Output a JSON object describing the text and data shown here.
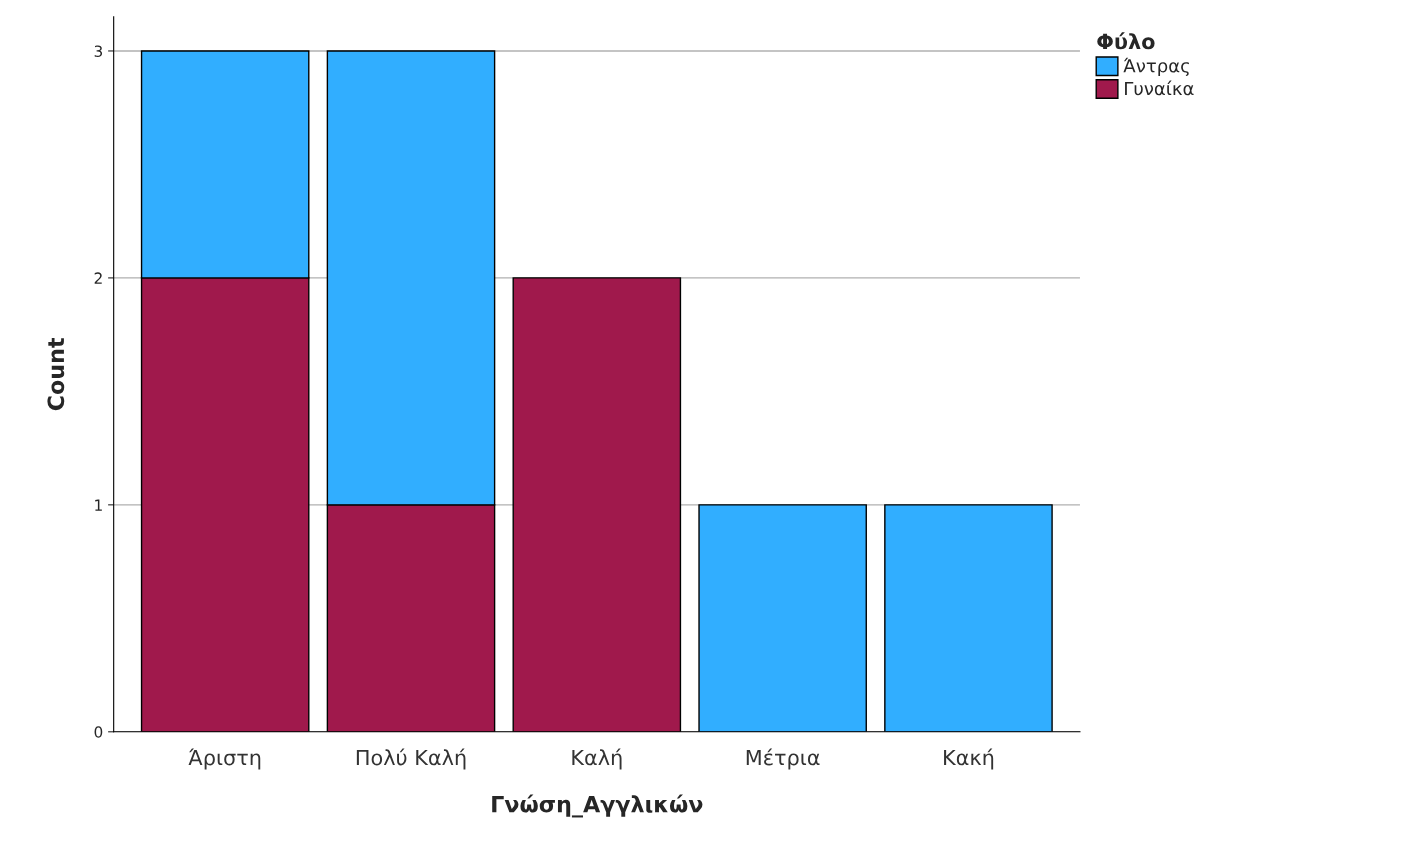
{
  "chart_data": {
    "type": "bar",
    "stacked": true,
    "xlabel": "Γνώση_Αγγλικών",
    "ylabel": "Count",
    "legend_title": "Φύλο",
    "categories": [
      "Άριστη",
      "Πολύ Καλή",
      "Καλή",
      "Μέτρια",
      "Κακή"
    ],
    "series": [
      {
        "name": "Γυναίκα",
        "color": "#a0194c",
        "values": [
          2,
          1,
          2,
          0,
          0
        ]
      },
      {
        "name": "Άντρας",
        "color": "#31aeff",
        "values": [
          1,
          2,
          0,
          1,
          1
        ]
      }
    ],
    "ylim": [
      0,
      3.15
    ],
    "yticks": [
      0,
      1,
      2,
      3
    ],
    "grid": "y",
    "legend": "top right"
  }
}
